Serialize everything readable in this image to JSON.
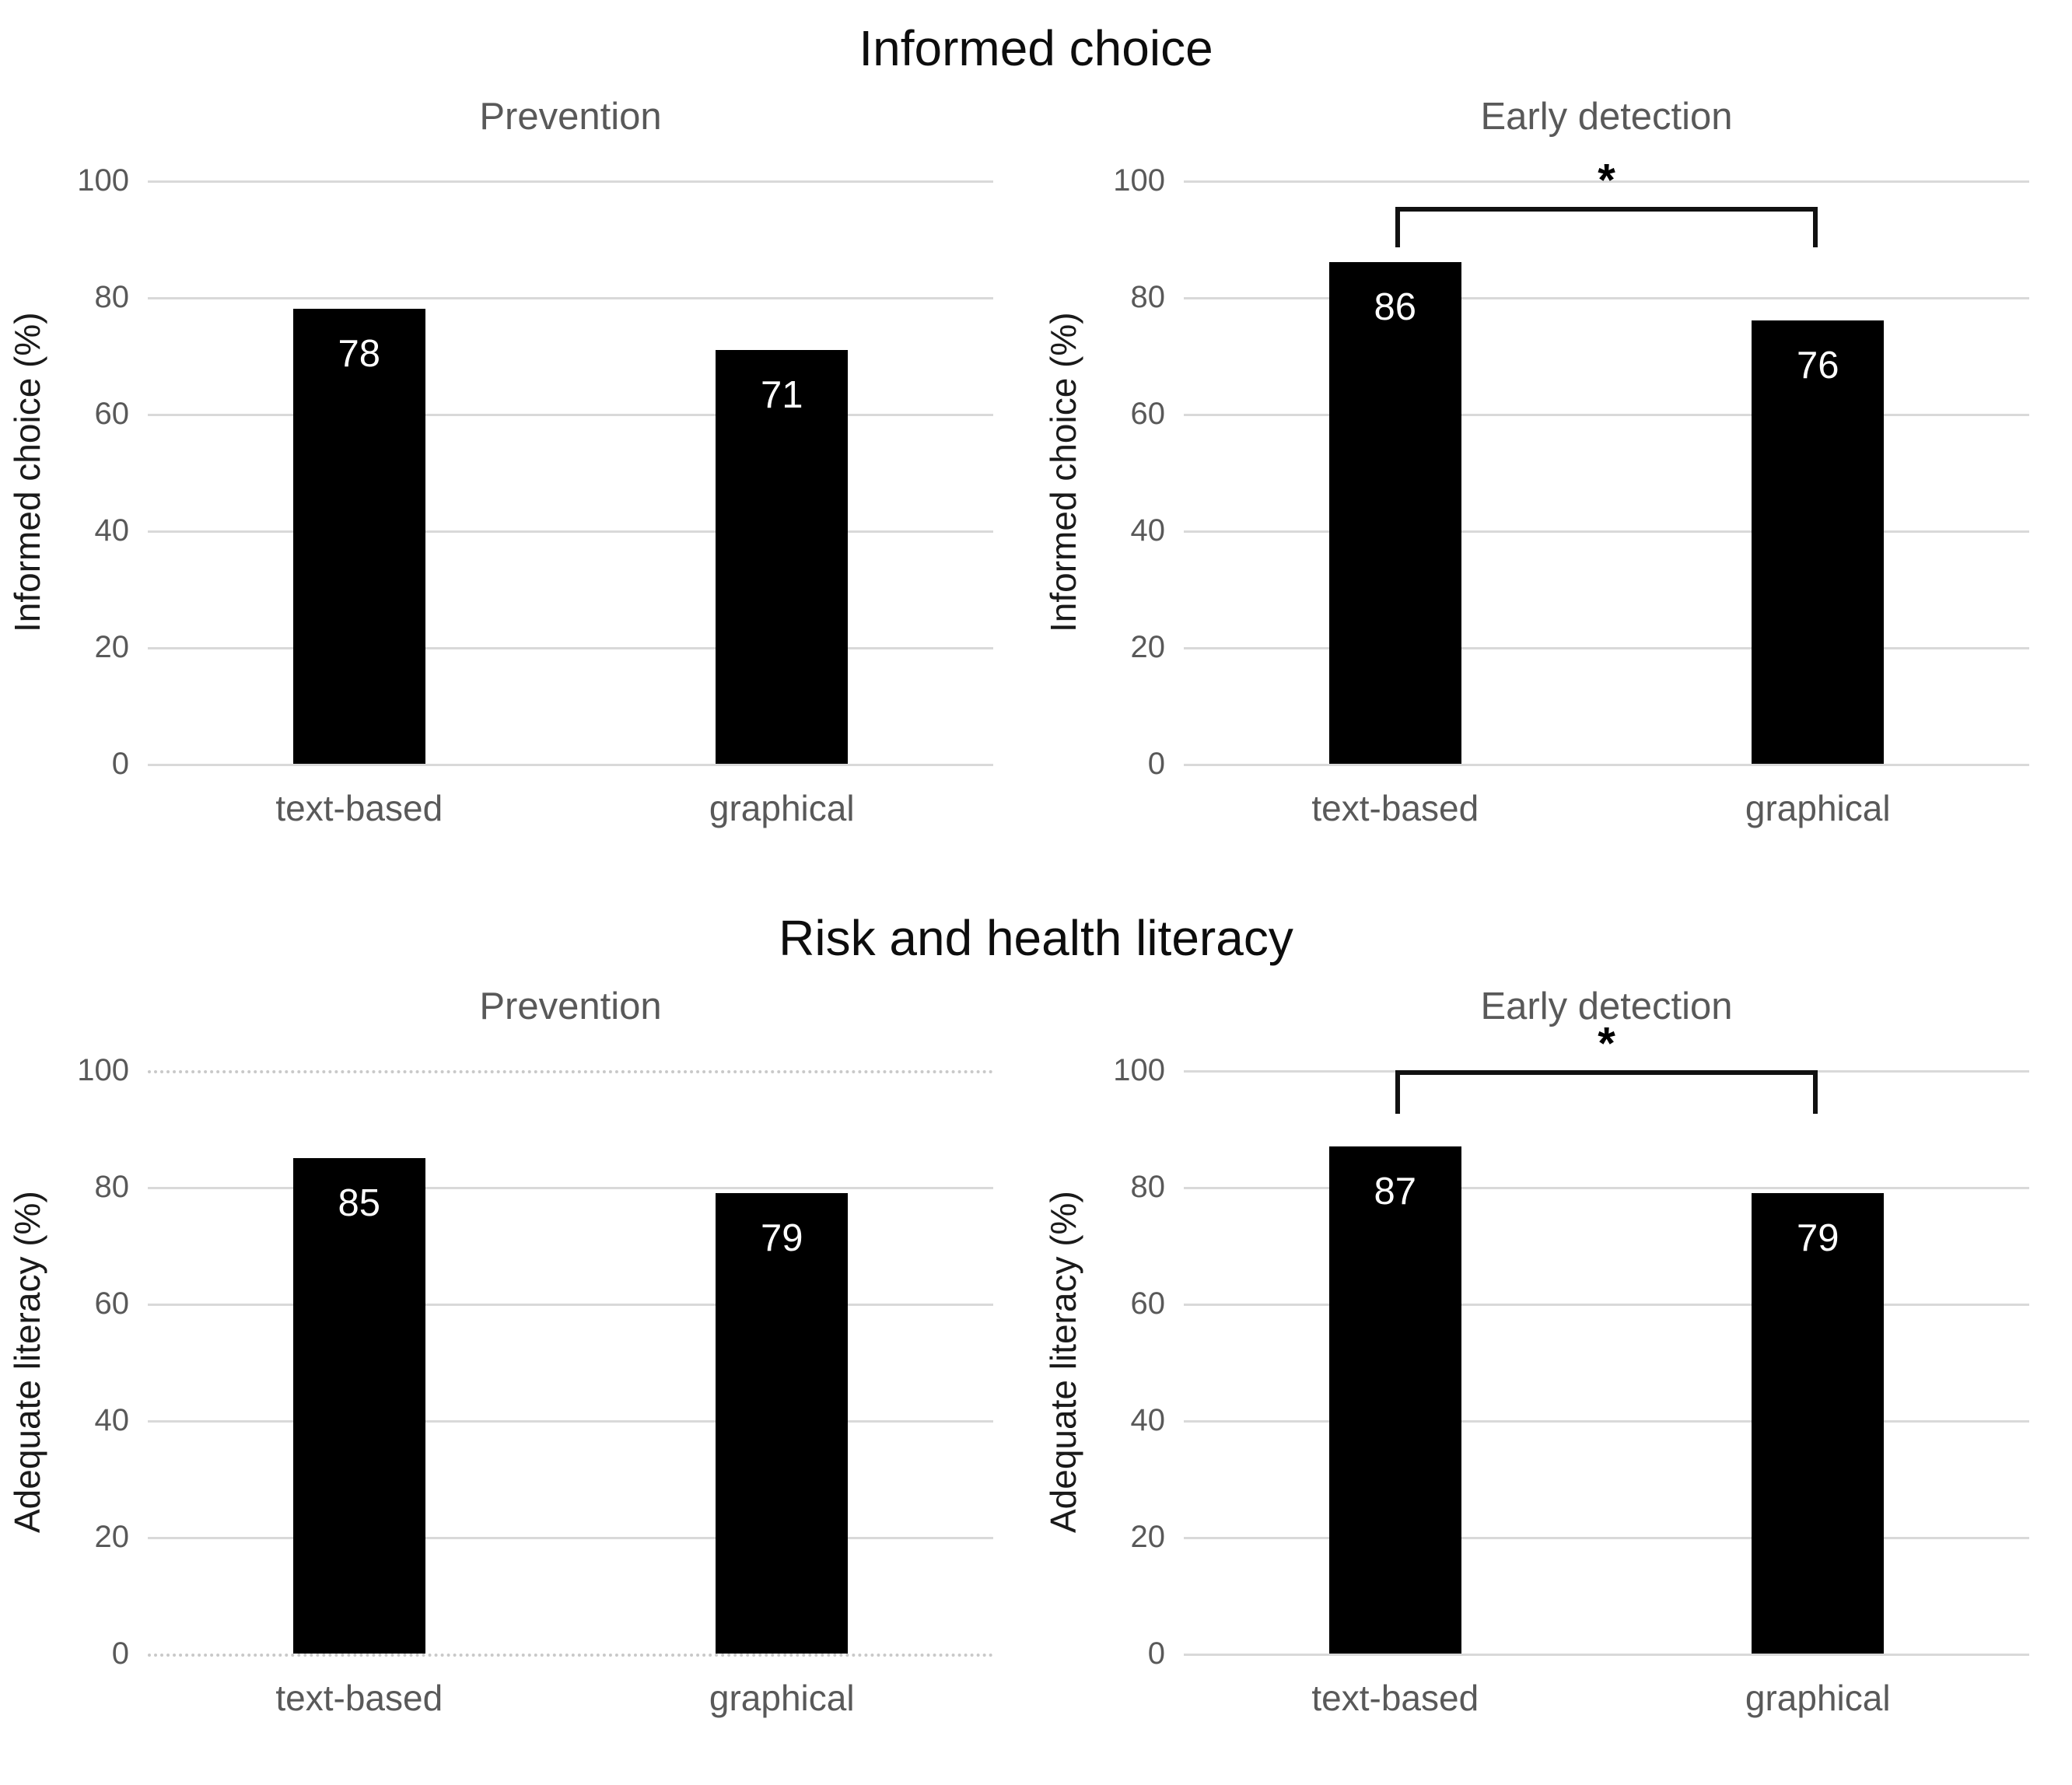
{
  "figure": {
    "background": "#ffffff",
    "bar_color": "#000000",
    "grid_color": "#d9d9d9",
    "axis_text_color": "#595959",
    "title_color": "#0d0d0d",
    "subtitle_color": "#595959",
    "value_label_color": "#ffffff",
    "significance_marker": "*"
  },
  "sections": [
    {
      "title": "Informed choice"
    },
    {
      "title": "Risk and health literacy"
    }
  ],
  "chart_data": [
    {
      "type": "bar",
      "section": "Informed choice",
      "title": "Prevention",
      "xlabel": "",
      "ylabel": "Informed choice (%)",
      "categories": [
        "text-based",
        "graphical"
      ],
      "values": [
        78,
        71
      ],
      "ylim": [
        0,
        100
      ],
      "yticks": [
        100,
        80,
        60,
        40,
        20,
        0
      ],
      "grid": true,
      "dotted_gridlines": [],
      "legend": null,
      "significance": null
    },
    {
      "type": "bar",
      "section": "Informed choice",
      "title": "Early detection",
      "xlabel": "",
      "ylabel": "Informed choice (%)",
      "categories": [
        "text-based",
        "graphical"
      ],
      "values": [
        86,
        76
      ],
      "ylim": [
        0,
        100
      ],
      "yticks": [
        100,
        80,
        60,
        40,
        20,
        0
      ],
      "grid": true,
      "dotted_gridlines": [],
      "legend": null,
      "significance": {
        "label": "*",
        "from": "text-based",
        "to": "graphical",
        "top_value": 95.5,
        "leg_bottom_value": 88.5
      }
    },
    {
      "type": "bar",
      "section": "Risk and health literacy",
      "title": "Prevention",
      "xlabel": "",
      "ylabel": "Adequate literacy (%)",
      "categories": [
        "text-based",
        "graphical"
      ],
      "values": [
        85,
        79
      ],
      "ylim": [
        0,
        100
      ],
      "yticks": [
        100,
        80,
        60,
        40,
        20,
        0
      ],
      "grid": true,
      "dotted_gridlines": [
        100,
        0
      ],
      "legend": null,
      "significance": null
    },
    {
      "type": "bar",
      "section": "Risk and health literacy",
      "title": "Early detection",
      "xlabel": "",
      "ylabel": "Adequate literacy (%)",
      "categories": [
        "text-based",
        "graphical"
      ],
      "values": [
        87,
        79
      ],
      "ylim": [
        0,
        100
      ],
      "yticks": [
        100,
        80,
        60,
        40,
        20,
        0
      ],
      "grid": true,
      "dotted_gridlines": [],
      "legend": null,
      "significance": {
        "label": "*",
        "from": "text-based",
        "to": "graphical",
        "top_value": 100,
        "leg_bottom_value": 92.5
      }
    }
  ]
}
